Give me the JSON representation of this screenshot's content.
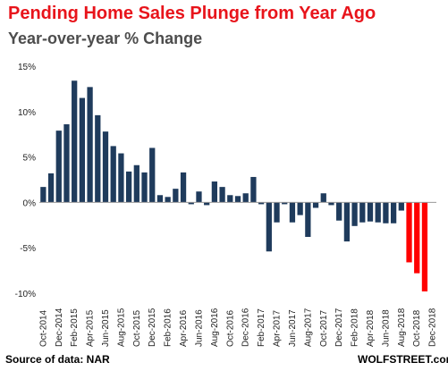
{
  "header": {
    "title": "Pending Home Sales Plunge from Year Ago",
    "subtitle": "Year-over-year % Change"
  },
  "footer": {
    "source": "Source of data: NAR",
    "brand": "WOLFSTREET.com"
  },
  "colors": {
    "title": "#e8141b",
    "bar": "#1f3b5c",
    "highlight": "#ff0000"
  },
  "chart_data": {
    "type": "bar",
    "title": "",
    "xlabel": "",
    "ylabel": "",
    "ylim": [
      -10,
      15
    ],
    "y_ticks": [
      -10,
      -5,
      0,
      5,
      10,
      15
    ],
    "y_tick_labels": [
      "-10%",
      "-5%",
      "0%",
      "5%",
      "10%",
      "15%"
    ],
    "grid": false,
    "categories": [
      "Oct-2014",
      "Nov-2014",
      "Dec-2014",
      "Jan-2015",
      "Feb-2015",
      "Mar-2015",
      "Apr-2015",
      "May-2015",
      "Jun-2015",
      "Jul-2015",
      "Aug-2015",
      "Sep-2015",
      "Oct-2015",
      "Nov-2015",
      "Dec-2015",
      "Jan-2016",
      "Feb-2016",
      "Mar-2016",
      "Apr-2016",
      "May-2016",
      "Jun-2016",
      "Jul-2016",
      "Aug-2016",
      "Sep-2016",
      "Oct-2016",
      "Nov-2016",
      "Dec-2016",
      "Jan-2017",
      "Feb-2017",
      "Mar-2017",
      "Apr-2017",
      "May-2017",
      "Jun-2017",
      "Jul-2017",
      "Aug-2017",
      "Sep-2017",
      "Oct-2017",
      "Nov-2017",
      "Dec-2017",
      "Jan-2018",
      "Feb-2018",
      "Mar-2018",
      "Apr-2018",
      "May-2018",
      "Jun-2018",
      "Jul-2018",
      "Aug-2018",
      "Sep-2018",
      "Oct-2018",
      "Nov-2018",
      "Dec-2018"
    ],
    "x_tick_labels": [
      "Oct-2014",
      "Dec-2014",
      "Feb-2015",
      "Apr-2015",
      "Jun-2015",
      "Aug-2015",
      "Oct-2015",
      "Dec-2015",
      "Feb-2016",
      "Apr-2016",
      "Jun-2016",
      "Aug-2016",
      "Oct-2016",
      "Dec-2016",
      "Feb-2017",
      "Apr-2017",
      "Jun-2017",
      "Aug-2017",
      "Oct-2017",
      "Dec-2017",
      "Feb-2018",
      "Apr-2018",
      "Jun-2018",
      "Aug-2018",
      "Oct-2018",
      "Dec-2018"
    ],
    "values": [
      1.7,
      3.2,
      7.9,
      8.6,
      13.4,
      11.5,
      12.7,
      9.6,
      7.8,
      6.2,
      5.4,
      3.4,
      4.1,
      3.3,
      6.0,
      0.8,
      0.6,
      1.5,
      3.3,
      -0.2,
      1.2,
      -0.3,
      2.3,
      1.7,
      0.8,
      0.7,
      1.0,
      2.8,
      -0.2,
      -5.4,
      -2.2,
      -0.2,
      -2.2,
      -1.4,
      -3.8,
      -0.6,
      1.0,
      -0.3,
      -2.0,
      -4.3,
      -2.6,
      -2.2,
      -2.1,
      -2.2,
      -2.3,
      -2.3,
      -0.9,
      -6.6,
      -7.8,
      -9.8,
      0
    ],
    "highlight_start": 47
  }
}
